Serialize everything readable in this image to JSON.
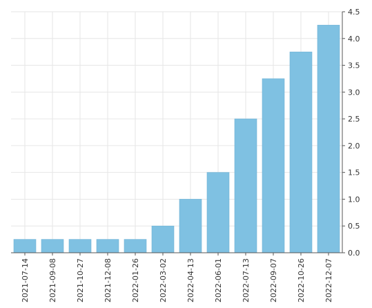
{
  "chart_data": {
    "type": "bar",
    "categories": [
      "2021-07-14",
      "2021-09-08",
      "2021-10-27",
      "2021-12-08",
      "2022-01-26",
      "2022-03-02",
      "2022-04-13",
      "2022-06-01",
      "2022-07-13",
      "2022-09-07",
      "2022-10-26",
      "2022-12-07"
    ],
    "values": [
      0.25,
      0.25,
      0.25,
      0.25,
      0.25,
      0.5,
      1.0,
      1.5,
      2.5,
      3.25,
      3.75,
      4.25
    ],
    "y_ticks": [
      "0.0",
      "0.5",
      "1.0",
      "1.5",
      "2.0",
      "2.5",
      "3.0",
      "3.5",
      "4.0",
      "4.5"
    ],
    "ylim": [
      0,
      4.5
    ],
    "y_axis_side": "right",
    "grid": true,
    "bar_color": "#7fc1e2",
    "bar_edge_color": "#6fb3d6",
    "grid_color": "#e6e6e6",
    "axis_color": "#555555"
  }
}
